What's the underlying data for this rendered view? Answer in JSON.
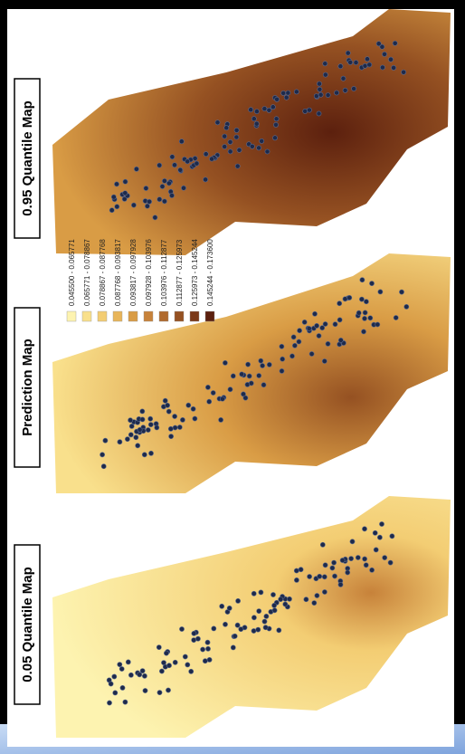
{
  "titles": [
    "0.95 Quantile Map",
    "Prediction Map",
    "0.05 Quantile Map"
  ],
  "legend": {
    "entries": [
      {
        "label": "0.045500 - 0.065771",
        "color": "#fdf3b0"
      },
      {
        "label": "0.065771 - 0.078867",
        "color": "#f9e08c"
      },
      {
        "label": "0.078867 - 0.087768",
        "color": "#f3cd73"
      },
      {
        "label": "0.087768 - 0.093817",
        "color": "#e8b55a"
      },
      {
        "label": "0.093817 - 0.097928",
        "color": "#d99c45"
      },
      {
        "label": "0.097928 - 0.103976",
        "color": "#c7823a"
      },
      {
        "label": "0.103976 - 0.112877",
        "color": "#b06a2d"
      },
      {
        "label": "0.112877 - 0.125973",
        "color": "#955122"
      },
      {
        "label": "0.125973 - 0.145244",
        "color": "#7a3818"
      },
      {
        "label": "0.145244 - 0.173600",
        "color": "#5c200e"
      }
    ]
  }
}
